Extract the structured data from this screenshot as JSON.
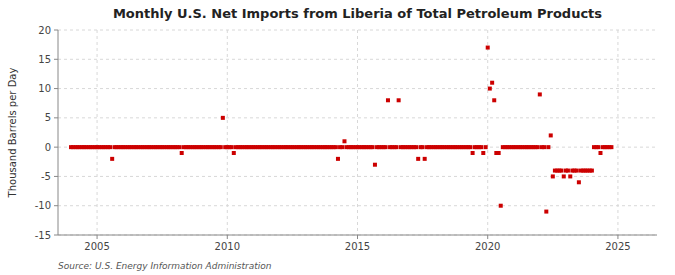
{
  "chart_data": {
    "type": "scatter",
    "title": "Monthly U.S. Net Imports from Liberia of Total Petroleum Products",
    "ylabel": "Thousand Barrels per Day",
    "source": "Source: U.S. Energy Information Administration",
    "color": "#cc0000",
    "marker": "square",
    "grid": true,
    "xlim": [
      2003.5,
      2026.5
    ],
    "xticks": [
      2005,
      2010,
      2015,
      2020,
      2025
    ],
    "ylim": [
      -15,
      20
    ],
    "yticks": [
      -15,
      -10,
      -5,
      0,
      5,
      10,
      15,
      20
    ],
    "x": [
      2004.0,
      2004.08,
      2004.17,
      2004.25,
      2004.33,
      2004.42,
      2004.5,
      2004.58,
      2004.67,
      2004.75,
      2004.83,
      2004.92,
      2005.0,
      2005.08,
      2005.17,
      2005.25,
      2005.33,
      2005.42,
      2005.5,
      2005.58,
      2005.67,
      2005.75,
      2005.83,
      2005.92,
      2006.0,
      2006.08,
      2006.17,
      2006.25,
      2006.33,
      2006.42,
      2006.5,
      2006.58,
      2006.67,
      2006.75,
      2006.83,
      2006.92,
      2007.0,
      2007.08,
      2007.17,
      2007.25,
      2007.33,
      2007.42,
      2007.5,
      2007.58,
      2007.67,
      2007.75,
      2007.83,
      2007.92,
      2008.0,
      2008.08,
      2008.17,
      2008.25,
      2008.33,
      2008.42,
      2008.5,
      2008.58,
      2008.67,
      2008.75,
      2008.83,
      2008.92,
      2009.0,
      2009.08,
      2009.17,
      2009.25,
      2009.33,
      2009.42,
      2009.5,
      2009.58,
      2009.67,
      2009.75,
      2009.83,
      2009.92,
      2010.0,
      2010.08,
      2010.17,
      2010.25,
      2010.33,
      2010.42,
      2010.5,
      2010.58,
      2010.67,
      2010.75,
      2010.83,
      2010.92,
      2011.0,
      2011.08,
      2011.17,
      2011.25,
      2011.33,
      2011.42,
      2011.5,
      2011.58,
      2011.67,
      2011.75,
      2011.83,
      2011.92,
      2012.0,
      2012.08,
      2012.17,
      2012.25,
      2012.33,
      2012.42,
      2012.5,
      2012.58,
      2012.67,
      2012.75,
      2012.83,
      2012.92,
      2013.0,
      2013.08,
      2013.17,
      2013.25,
      2013.33,
      2013.42,
      2013.5,
      2013.58,
      2013.67,
      2013.75,
      2013.83,
      2013.92,
      2014.0,
      2014.08,
      2014.17,
      2014.25,
      2014.33,
      2014.42,
      2014.5,
      2014.58,
      2014.67,
      2014.75,
      2014.83,
      2014.92,
      2015.0,
      2015.08,
      2015.17,
      2015.25,
      2015.33,
      2015.42,
      2015.5,
      2015.58,
      2015.67,
      2015.75,
      2015.83,
      2015.92,
      2016.0,
      2016.08,
      2016.17,
      2016.25,
      2016.33,
      2016.42,
      2016.5,
      2016.58,
      2016.67,
      2016.75,
      2016.83,
      2016.92,
      2017.0,
      2017.08,
      2017.17,
      2017.25,
      2017.33,
      2017.42,
      2017.5,
      2017.58,
      2017.67,
      2017.75,
      2017.83,
      2017.92,
      2018.0,
      2018.08,
      2018.17,
      2018.25,
      2018.33,
      2018.42,
      2018.5,
      2018.58,
      2018.67,
      2018.75,
      2018.83,
      2018.92,
      2019.0,
      2019.08,
      2019.17,
      2019.25,
      2019.33,
      2019.42,
      2019.5,
      2019.58,
      2019.67,
      2019.75,
      2019.83,
      2019.92,
      2020.0,
      2020.08,
      2020.17,
      2020.25,
      2020.33,
      2020.42,
      2020.5,
      2020.58,
      2020.67,
      2020.75,
      2020.83,
      2020.92,
      2021.0,
      2021.08,
      2021.17,
      2021.25,
      2021.33,
      2021.42,
      2021.5,
      2021.58,
      2021.67,
      2021.75,
      2021.83,
      2021.92,
      2022.0,
      2022.08,
      2022.17,
      2022.25,
      2022.33,
      2022.42,
      2022.5,
      2022.58,
      2022.67,
      2022.75,
      2022.83,
      2022.92,
      2023.0,
      2023.08,
      2023.17,
      2023.25,
      2023.33,
      2023.42,
      2023.5,
      2023.58,
      2023.67,
      2023.75,
      2023.83,
      2023.92,
      2024.0,
      2024.08,
      2024.17,
      2024.25,
      2024.33,
      2024.42,
      2024.5,
      2024.58,
      2024.67,
      2024.75
    ],
    "values": [
      0,
      0,
      0,
      0,
      0,
      0,
      0,
      0,
      0,
      0,
      0,
      0,
      0,
      0,
      0,
      0,
      0,
      0,
      0,
      -2,
      0,
      0,
      0,
      0,
      0,
      0,
      0,
      0,
      0,
      0,
      0,
      0,
      0,
      0,
      0,
      0,
      0,
      0,
      0,
      0,
      0,
      0,
      0,
      0,
      0,
      0,
      0,
      0,
      0,
      0,
      0,
      -1,
      0,
      0,
      0,
      0,
      0,
      0,
      0,
      0,
      0,
      0,
      0,
      0,
      0,
      0,
      0,
      0,
      0,
      0,
      5,
      0,
      0,
      0,
      0,
      -1,
      0,
      0,
      0,
      0,
      0,
      0,
      0,
      0,
      0,
      0,
      0,
      0,
      0,
      0,
      0,
      0,
      0,
      0,
      0,
      0,
      0,
      0,
      0,
      0,
      0,
      0,
      0,
      0,
      0,
      0,
      0,
      0,
      0,
      0,
      0,
      0,
      0,
      0,
      0,
      0,
      0,
      0,
      0,
      0,
      0,
      0,
      0,
      -2,
      0,
      0,
      1,
      0,
      0,
      0,
      0,
      0,
      0,
      0,
      0,
      0,
      0,
      0,
      0,
      0,
      -3,
      0,
      0,
      0,
      0,
      0,
      8,
      0,
      0,
      0,
      0,
      8,
      0,
      0,
      0,
      0,
      0,
      0,
      0,
      0,
      -2,
      0,
      0,
      -2,
      0,
      0,
      0,
      0,
      0,
      0,
      0,
      0,
      0,
      0,
      0,
      0,
      0,
      0,
      0,
      0,
      0,
      0,
      0,
      0,
      0,
      -1,
      0,
      0,
      0,
      0,
      -1,
      0,
      17,
      10,
      11,
      8,
      -1,
      -1,
      -10,
      0,
      0,
      0,
      0,
      0,
      0,
      0,
      0,
      0,
      0,
      0,
      0,
      0,
      0,
      0,
      0,
      0,
      9,
      0,
      0,
      -11,
      0,
      2,
      -5,
      -4,
      -4,
      -4,
      -4,
      -5,
      -4,
      -4,
      -5,
      -4,
      -4,
      -4,
      -6,
      -4,
      -4,
      -4,
      -4,
      -4,
      -4,
      0,
      0,
      0,
      -1,
      0,
      0,
      0,
      0,
      0
    ]
  }
}
